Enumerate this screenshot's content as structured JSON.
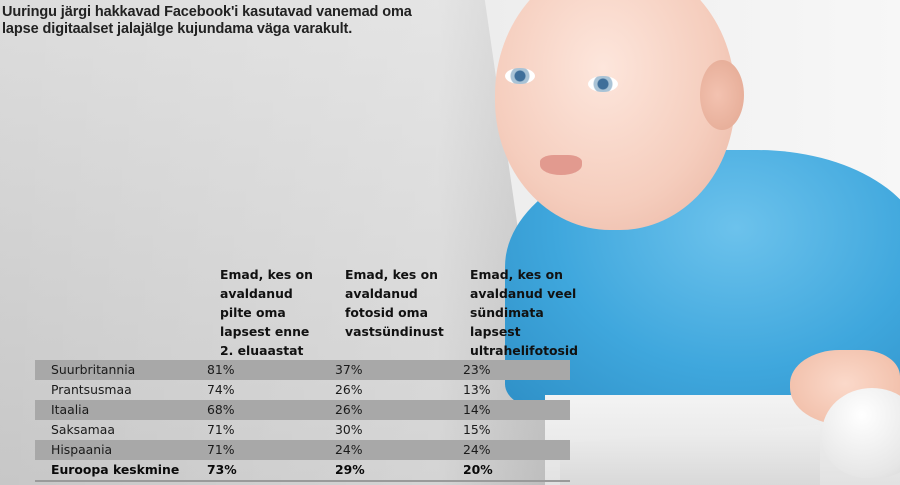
{
  "headline": "Uuringu järgi hakkavad Facebook'i kasutavad vanemad oma lapse digitaalset jalajälge kujundama väga varakult.",
  "chart_data": {
    "type": "table",
    "columns": [
      "Emad, kes on\navaldanud\npilte oma\nlapsest enne\n2. eluaastat",
      "Emad, kes on\navaldanud\nfotosid oma\nvastsündinust",
      "Emad, kes on\navaldanud veel\nsündimata\nlapsest\nultrahelifotosid"
    ],
    "rows": [
      {
        "label": "Suurbritannia",
        "values": [
          "81%",
          "37%",
          "23%"
        ]
      },
      {
        "label": "Prantsusmaa",
        "values": [
          "74%",
          "26%",
          "13%"
        ]
      },
      {
        "label": "Itaalia",
        "values": [
          "68%",
          "26%",
          "14%"
        ]
      },
      {
        "label": "Saksamaa",
        "values": [
          "71%",
          "30%",
          "15%"
        ]
      },
      {
        "label": "Hispaania",
        "values": [
          "71%",
          "24%",
          "24%"
        ]
      },
      {
        "label": "Euroopa keskmine",
        "values": [
          "73%",
          "29%",
          "20%"
        ]
      }
    ],
    "row_shading": "alternating-gray",
    "highlight_last_row": true
  }
}
